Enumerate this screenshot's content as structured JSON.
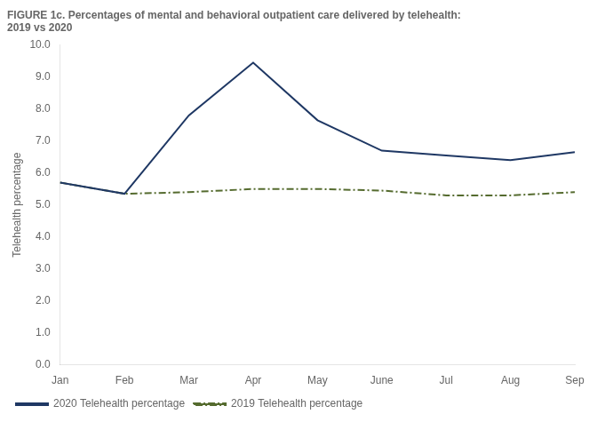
{
  "chart_data": {
    "type": "line",
    "title": "FIGURE 1c. Percentages of mental and behavioral outpatient care delivered by telehealth:\n2019 vs 2020",
    "categories": [
      "Jan",
      "Feb",
      "Mar",
      "Apr",
      "May",
      "June",
      "Jul",
      "Aug",
      "Sep"
    ],
    "series": [
      {
        "name": "2020 Telehealth percentage",
        "color": "#1f3864",
        "line_style": "solid",
        "values": [
          5.7,
          5.35,
          7.8,
          9.45,
          7.65,
          6.7,
          6.55,
          6.4,
          6.65
        ]
      },
      {
        "name": "2019 Telehealth percentage",
        "color": "#556b2f",
        "line_style": "dashdot",
        "values": [
          5.7,
          5.35,
          5.4,
          5.5,
          5.5,
          5.45,
          5.3,
          5.3,
          5.4
        ]
      }
    ],
    "y_label": "Telehealth percentage",
    "ylim": [
      0.0,
      10.0
    ],
    "yticks": [
      {
        "value": 0,
        "label": "0.0"
      },
      {
        "value": 1,
        "label": "1.0"
      },
      {
        "value": 2,
        "label": "2.0"
      },
      {
        "value": 3,
        "label": "3.0"
      },
      {
        "value": 4,
        "label": "4.0"
      },
      {
        "value": 5,
        "label": "5.0"
      },
      {
        "value": 6,
        "label": "6.0"
      },
      {
        "value": 7,
        "label": "7.0"
      },
      {
        "value": 8,
        "label": "8.0"
      },
      {
        "value": 9,
        "label": "9.0"
      },
      {
        "value": 10,
        "label": "10.0"
      }
    ],
    "grid": false,
    "legend": "lower left"
  }
}
